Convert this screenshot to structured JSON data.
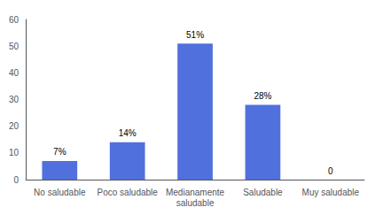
{
  "chart_data": {
    "type": "bar",
    "categories": [
      "No saludable",
      "Poco saludable",
      "Medianamente\nsaludable",
      "Saludable",
      "Muy saludable"
    ],
    "values": [
      7,
      14,
      51,
      28,
      0
    ],
    "value_labels": [
      "7%",
      "14%",
      "51%",
      "28%",
      "0"
    ],
    "data_labels": true,
    "ylim": [
      0,
      60
    ],
    "yticks": [
      0,
      10,
      20,
      30,
      40,
      50,
      60
    ],
    "grid": false
  }
}
